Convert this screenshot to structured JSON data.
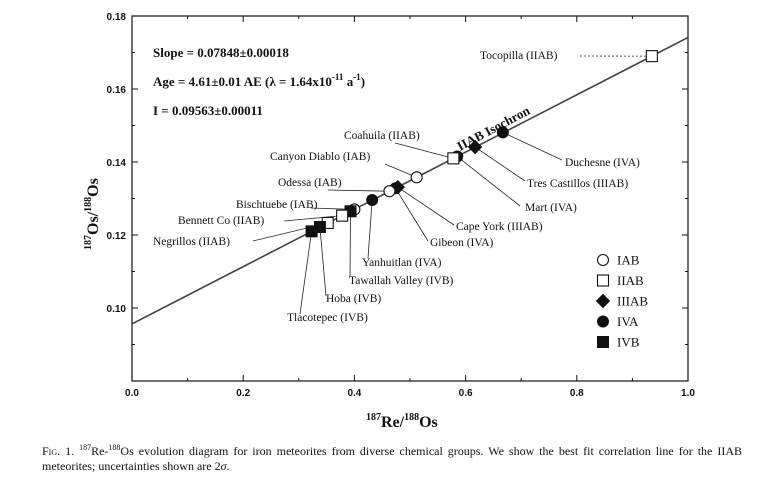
{
  "chart_data": {
    "type": "scatter",
    "xlim": [
      0.0,
      1.0
    ],
    "ylim": [
      0.08,
      0.18
    ],
    "xticks": [
      "0.0",
      "0.2",
      "0.4",
      "0.6",
      "0.8",
      "1.0"
    ],
    "yticks": [
      "0.10",
      "0.12",
      "0.14",
      "0.16",
      "0.18"
    ],
    "xlabel": {
      "sup1": "187",
      "main1": "Re/",
      "sup2": "188",
      "main2": "Os"
    },
    "ylabel": {
      "sup1": "187",
      "main1": "Os/",
      "sup2": "188",
      "main2": "Os"
    },
    "annotations": {
      "slope": "Slope = 0.07848±0.00018",
      "age_a": "Age = 4.61±0.01 AE (λ = 1.64x10",
      "age_exp": "-11",
      "age_b": " a",
      "age_exp2": "-1",
      "age_c": ")",
      "intercept": "I = 0.09563±0.00011"
    },
    "isochron": {
      "label": "IIAB Isochron",
      "slope": 0.07848,
      "intercept": 0.09563
    },
    "legend": [
      {
        "marker": "circle-open",
        "label": "IAB"
      },
      {
        "marker": "square-open",
        "label": "IIAB"
      },
      {
        "marker": "diamond-filled",
        "label": "IIIAB"
      },
      {
        "marker": "circle-filled",
        "label": "IVA"
      },
      {
        "marker": "square-filled",
        "label": "IVB"
      }
    ],
    "points": [
      {
        "name": "Tocopilla (IIAB)",
        "group": "IIAB",
        "x": 0.935,
        "y": 0.169
      },
      {
        "name": "Duchesne (IVA)",
        "group": "IVA",
        "x": 0.667,
        "y": 0.1481
      },
      {
        "name": "Tres Castillos (IIIAB)",
        "group": "IIIAB",
        "x": 0.617,
        "y": 0.1441
      },
      {
        "name": "Mart (IVA)",
        "group": "IVA",
        "x": 0.585,
        "y": 0.1415
      },
      {
        "name": "Coahuila (IIAB)",
        "group": "IIAB",
        "x": 0.578,
        "y": 0.141
      },
      {
        "name": "Canyon Diablo (IAB)",
        "group": "IAB",
        "x": 0.512,
        "y": 0.1358
      },
      {
        "name": "Cape York (IIIAB)",
        "group": "IIIAB",
        "x": 0.478,
        "y": 0.1331
      },
      {
        "name": "Gibeon (IVA)",
        "group": "IVA",
        "x": 0.474,
        "y": 0.1328
      },
      {
        "name": "Odessa (IAB)",
        "group": "IAB",
        "x": 0.463,
        "y": 0.132
      },
      {
        "name": "Yanhuitlan (IVA)",
        "group": "IVA",
        "x": 0.432,
        "y": 0.1296
      },
      {
        "name": "Bischtuebe (IAB)",
        "group": "IAB",
        "x": 0.4,
        "y": 0.127
      },
      {
        "name": "Tawallah Valley (IVB)",
        "group": "IVB",
        "x": 0.393,
        "y": 0.1265
      },
      {
        "name": "Bennett Co (IIAB)",
        "group": "IIAB",
        "x": 0.378,
        "y": 0.1253
      },
      {
        "name": "Negrillos (IIAB)",
        "group": "IIAB",
        "x": 0.352,
        "y": 0.1233
      },
      {
        "name": "Hoba (IVB)",
        "group": "IVB",
        "x": 0.338,
        "y": 0.1222
      },
      {
        "name": "Tlacotepec (IVB)",
        "group": "IVB",
        "x": 0.323,
        "y": 0.121
      }
    ]
  },
  "caption": {
    "fig": "Fig. 1.",
    "sup1": "187",
    "t1": "Re-",
    "sup2": "188",
    "t2": "Os evolution diagram for iron meteorites from diverse chemical groups. We show the best fit correlation line for the IIAB meteorites; uncertainties shown are 2",
    "sigma": "σ",
    "t3": "."
  }
}
